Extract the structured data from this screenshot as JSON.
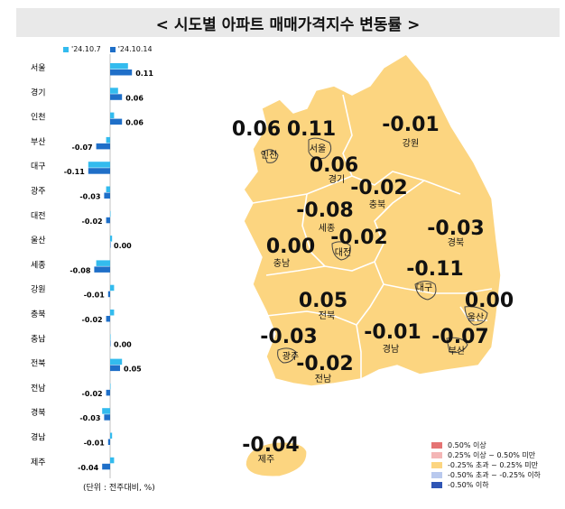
{
  "title": "< 시도별 아파트 매매가격지수 변동률 >",
  "legend": {
    "prev": "'24.10.7",
    "curr": "'24.10.14",
    "prev_color": "#33bbee",
    "curr_color": "#1f6fc8"
  },
  "chart_data": [
    {
      "type": "bar",
      "orientation": "horizontal",
      "categories": [
        "서울",
        "경기",
        "인천",
        "부산",
        "대구",
        "광주",
        "대전",
        "울산",
        "세종",
        "강원",
        "충북",
        "충남",
        "전북",
        "전남",
        "경북",
        "경남",
        "제주"
      ],
      "series": [
        {
          "name": "'24.10.7",
          "values": [
            0.09,
            0.04,
            0.02,
            -0.02,
            -0.11,
            -0.02,
            0.0,
            0.01,
            -0.07,
            0.02,
            0.02,
            0.0,
            0.06,
            0.0,
            -0.04,
            0.01,
            0.02
          ]
        },
        {
          "name": "'24.10.14",
          "values": [
            0.11,
            0.06,
            0.06,
            -0.07,
            -0.11,
            -0.03,
            -0.02,
            0.0,
            -0.08,
            -0.01,
            -0.02,
            0.0,
            0.05,
            -0.02,
            -0.03,
            -0.01,
            -0.04
          ]
        }
      ],
      "value_labels": [
        "0.11",
        "0.06",
        "0.06",
        "-0.07",
        "-0.11",
        "-0.03",
        "-0.02",
        "0.00",
        "-0.08",
        "-0.01",
        "-0.02",
        "0.00",
        "0.05",
        "-0.02",
        "-0.03",
        "-0.01",
        "-0.04"
      ]
    }
  ],
  "unit_note": "(단위 : 전주대비, %)",
  "map_labels": [
    {
      "name": "인천",
      "value": "0.06"
    },
    {
      "name": "서울",
      "value": "0.11"
    },
    {
      "name": "강원",
      "value": "-0.01"
    },
    {
      "name": "경기",
      "value": "0.06"
    },
    {
      "name": "충북",
      "value": "-0.02"
    },
    {
      "name": "세종",
      "value": "-0.08"
    },
    {
      "name": "대전",
      "value": "-0.02"
    },
    {
      "name": "경북",
      "value": "-0.03"
    },
    {
      "name": "충남",
      "value": "0.00"
    },
    {
      "name": "대구",
      "value": "-0.11"
    },
    {
      "name": "전북",
      "value": "0.05"
    },
    {
      "name": "울산",
      "value": "0.00"
    },
    {
      "name": "광주",
      "value": "-0.03"
    },
    {
      "name": "경남",
      "value": "-0.01"
    },
    {
      "name": "부산",
      "value": "-0.07"
    },
    {
      "name": "전남",
      "value": "-0.02"
    },
    {
      "name": "제주",
      "value": "-0.04"
    }
  ],
  "map_fill_color": "#fcd580",
  "map_legend": [
    {
      "label": "0.50% 이상",
      "color": "#e57373"
    },
    {
      "label": "0.25% 이상 ~ 0.50% 미만",
      "color": "#f4b6b6"
    },
    {
      "label": "-0.25% 초과 ~ 0.25% 미만",
      "color": "#fcd580"
    },
    {
      "label": "-0.50% 초과 ~ -0.25% 이하",
      "color": "#b9c9ee"
    },
    {
      "label": "-0.50% 이하",
      "color": "#2f55b5"
    }
  ]
}
